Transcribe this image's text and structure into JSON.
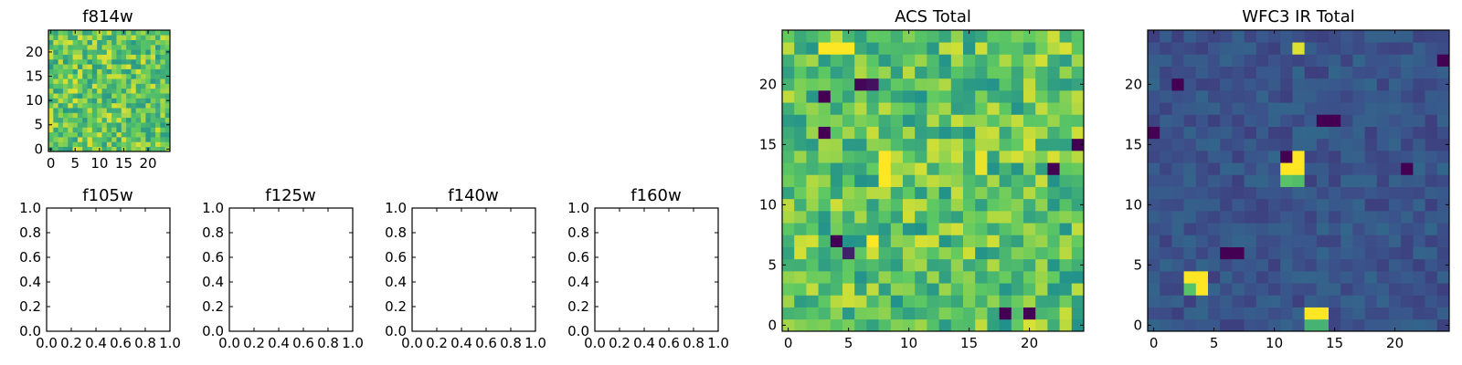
{
  "figure": {
    "colormap": [
      "#440154",
      "#3b528b",
      "#21918c",
      "#5ec962",
      "#fde725"
    ]
  },
  "chart_data": [
    {
      "id": "f814w",
      "type": "heatmap",
      "title": "f814w",
      "grid_size": 25,
      "xlim": [
        -0.5,
        24.5
      ],
      "ylim": [
        -0.5,
        24.5
      ],
      "xticks": [
        0,
        5,
        10,
        15,
        20
      ],
      "yticks": [
        0,
        5,
        10,
        15,
        20
      ],
      "value_range": [
        0,
        1
      ],
      "pattern": "noise",
      "base": 0.74,
      "spread": 0.42,
      "seed": 814,
      "hotspots": []
    },
    {
      "id": "f105w",
      "type": "empty",
      "title": "f105w",
      "xlim": [
        0,
        1
      ],
      "ylim": [
        0,
        1
      ],
      "xticks": [
        "0.0",
        "0.2",
        "0.4",
        "0.6",
        "0.8",
        "1.0"
      ],
      "yticks": [
        "0.0",
        "0.2",
        "0.4",
        "0.6",
        "0.8",
        "1.0"
      ]
    },
    {
      "id": "f125w",
      "type": "empty",
      "title": "f125w",
      "xlim": [
        0,
        1
      ],
      "ylim": [
        0,
        1
      ],
      "xticks": [
        "0.0",
        "0.2",
        "0.4",
        "0.6",
        "0.8",
        "1.0"
      ],
      "yticks": [
        "0.0",
        "0.2",
        "0.4",
        "0.6",
        "0.8",
        "1.0"
      ]
    },
    {
      "id": "f140w",
      "type": "empty",
      "title": "f140w",
      "xlim": [
        0,
        1
      ],
      "ylim": [
        0,
        1
      ],
      "xticks": [
        "0.0",
        "0.2",
        "0.4",
        "0.6",
        "0.8",
        "1.0"
      ],
      "yticks": [
        "0.0",
        "0.2",
        "0.4",
        "0.6",
        "0.8",
        "1.0"
      ]
    },
    {
      "id": "f160w",
      "type": "empty",
      "title": "f160w",
      "xlim": [
        0,
        1
      ],
      "ylim": [
        0,
        1
      ],
      "xticks": [
        "0.0",
        "0.2",
        "0.4",
        "0.6",
        "0.8",
        "1.0"
      ],
      "yticks": [
        "0.0",
        "0.2",
        "0.4",
        "0.6",
        "0.8",
        "1.0"
      ]
    },
    {
      "id": "acs-total",
      "type": "heatmap",
      "title": "ACS Total",
      "grid_size": 25,
      "xlim": [
        -0.5,
        24.5
      ],
      "ylim": [
        -0.5,
        24.5
      ],
      "xticks": [
        0,
        5,
        10,
        15,
        20
      ],
      "yticks": [
        0,
        5,
        10,
        15,
        20
      ],
      "value_range": [
        0,
        1
      ],
      "pattern": "noise",
      "base": 0.72,
      "spread": 0.44,
      "seed": 2024,
      "hotspots": [
        {
          "row": 19,
          "col": 3,
          "value": 0.0
        },
        {
          "row": 20,
          "col": 6,
          "value": 0.02
        },
        {
          "row": 20,
          "col": 7,
          "value": 0.05
        },
        {
          "row": 16,
          "col": 3,
          "value": 0.0
        },
        {
          "row": 15,
          "col": 24,
          "value": 0.0
        },
        {
          "row": 13,
          "col": 22,
          "value": 0.0
        },
        {
          "row": 7,
          "col": 4,
          "value": 0.0
        },
        {
          "row": 6,
          "col": 5,
          "value": 0.1
        },
        {
          "row": 1,
          "col": 18,
          "value": 0.0
        },
        {
          "row": 1,
          "col": 20,
          "value": 0.0
        },
        {
          "row": 14,
          "col": 8,
          "value": 1.0
        },
        {
          "row": 13,
          "col": 8,
          "value": 1.0
        },
        {
          "row": 12,
          "col": 8,
          "value": 1.0
        },
        {
          "row": 14,
          "col": 16,
          "value": 0.97
        },
        {
          "row": 13,
          "col": 16,
          "value": 0.97
        },
        {
          "row": 23,
          "col": 3,
          "value": 1.0
        },
        {
          "row": 23,
          "col": 4,
          "value": 1.0
        },
        {
          "row": 23,
          "col": 5,
          "value": 1.0
        },
        {
          "row": 7,
          "col": 7,
          "value": 1.0
        }
      ]
    },
    {
      "id": "wfc3-ir-total",
      "type": "heatmap",
      "title": "WFC3 IR Total",
      "grid_size": 25,
      "xlim": [
        -0.5,
        24.5
      ],
      "ylim": [
        -0.5,
        24.5
      ],
      "xticks": [
        0,
        5,
        10,
        15,
        20
      ],
      "yticks": [
        0,
        5,
        10,
        15,
        20
      ],
      "value_range": [
        0,
        1
      ],
      "pattern": "noise",
      "base": 0.26,
      "spread": 0.14,
      "seed": 3105,
      "hotspots": [
        {
          "row": 4,
          "col": 3,
          "value": 1.0
        },
        {
          "row": 4,
          "col": 4,
          "value": 1.0
        },
        {
          "row": 3,
          "col": 3,
          "value": 0.72
        },
        {
          "row": 3,
          "col": 4,
          "value": 1.0
        },
        {
          "row": 13,
          "col": 11,
          "value": 1.0
        },
        {
          "row": 13,
          "col": 12,
          "value": 1.0
        },
        {
          "row": 14,
          "col": 12,
          "value": 1.0
        },
        {
          "row": 12,
          "col": 11,
          "value": 0.72
        },
        {
          "row": 12,
          "col": 12,
          "value": 0.7
        },
        {
          "row": 1,
          "col": 13,
          "value": 1.0
        },
        {
          "row": 1,
          "col": 14,
          "value": 1.0
        },
        {
          "row": 0,
          "col": 13,
          "value": 0.65
        },
        {
          "row": 0,
          "col": 14,
          "value": 0.65
        },
        {
          "row": 17,
          "col": 14,
          "value": 0.0
        },
        {
          "row": 17,
          "col": 15,
          "value": 0.0
        },
        {
          "row": 16,
          "col": 0,
          "value": 0.0
        },
        {
          "row": 14,
          "col": 11,
          "value": 0.0
        },
        {
          "row": 6,
          "col": 6,
          "value": 0.0
        },
        {
          "row": 6,
          "col": 7,
          "value": 0.0
        },
        {
          "row": 13,
          "col": 21,
          "value": 0.0
        },
        {
          "row": 20,
          "col": 2,
          "value": 0.0
        },
        {
          "row": 23,
          "col": 12,
          "value": 0.95
        },
        {
          "row": 22,
          "col": 24,
          "value": 0.0
        }
      ]
    }
  ]
}
